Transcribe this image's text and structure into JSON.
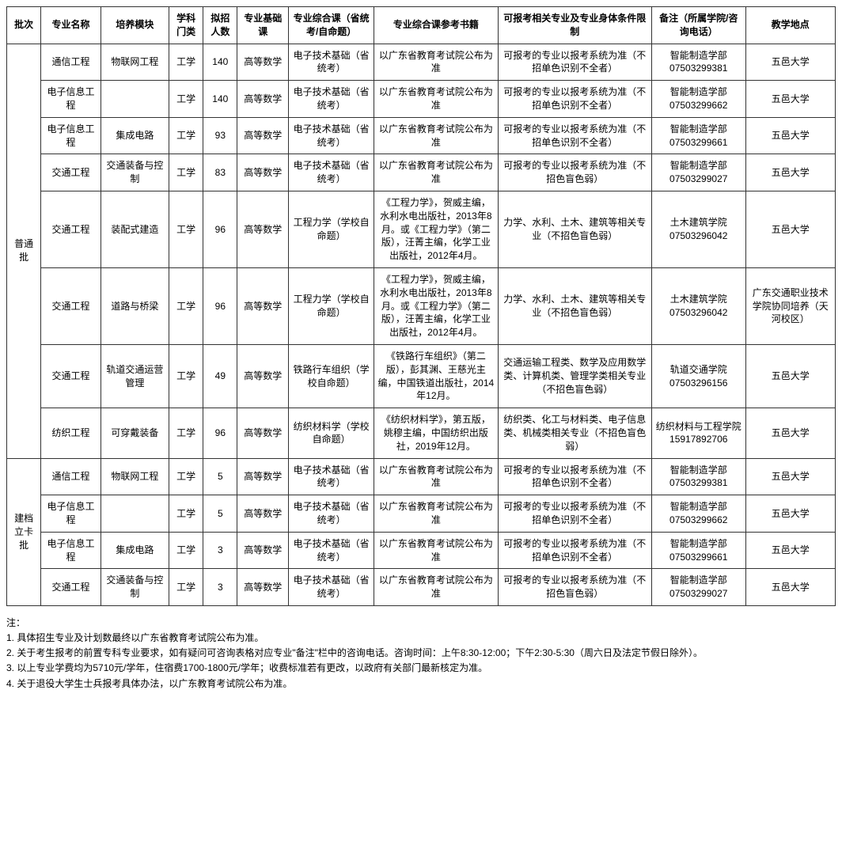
{
  "headers": {
    "batch": "批次",
    "major": "专业名称",
    "module": "培养模块",
    "category": "学科门类",
    "enroll": "拟招人数",
    "basic": "专业基础课",
    "comp": "专业综合课（省统考/自命题）",
    "books": "专业综合课参考书籍",
    "restrict": "可报考相关专业及专业身体条件限制",
    "note": "备注（所属学院/咨询电话）",
    "location": "教学地点"
  },
  "batches": [
    {
      "label": "普通批",
      "rowspan": 8
    },
    {
      "label": "建档立卡批",
      "rowspan": 4
    }
  ],
  "rows": [
    {
      "major": "通信工程",
      "module": "物联网工程",
      "category": "工学",
      "enroll": "140",
      "basic": "高等数学",
      "comp": "电子技术基础（省统考）",
      "books": "以广东省教育考试院公布为准",
      "restrict": "可报考的专业以报考系统为准（不招单色识别不全者）",
      "note": "智能制造学部07503299381",
      "location": "五邑大学"
    },
    {
      "major": "电子信息工程",
      "module": "",
      "category": "工学",
      "enroll": "140",
      "basic": "高等数学",
      "comp": "电子技术基础（省统考）",
      "books": "以广东省教育考试院公布为准",
      "restrict": "可报考的专业以报考系统为准（不招单色识别不全者）",
      "note": "智能制造学部07503299662",
      "location": "五邑大学"
    },
    {
      "major": "电子信息工程",
      "module": "集成电路",
      "category": "工学",
      "enroll": "93",
      "basic": "高等数学",
      "comp": "电子技术基础（省统考）",
      "books": "以广东省教育考试院公布为准",
      "restrict": "可报考的专业以报考系统为准（不招单色识别不全者）",
      "note": "智能制造学部07503299661",
      "location": "五邑大学"
    },
    {
      "major": "交通工程",
      "module": "交通装备与控制",
      "category": "工学",
      "enroll": "83",
      "basic": "高等数学",
      "comp": "电子技术基础（省统考）",
      "books": "以广东省教育考试院公布为准",
      "restrict": "可报考的专业以报考系统为准（不招色盲色弱）",
      "note": "智能制造学部07503299027",
      "location": "五邑大学"
    },
    {
      "major": "交通工程",
      "module": "装配式建造",
      "category": "工学",
      "enroll": "96",
      "basic": "高等数学",
      "comp": "工程力学（学校自命题）",
      "books": "《工程力学》，贺威主编，水利水电出版社，2013年8月。或《工程力学》（第二版），汪菁主编，化学工业出版社，2012年4月。",
      "restrict": "力学、水利、土木、建筑等相关专业（不招色盲色弱）",
      "note": "土木建筑学院07503296042",
      "location": "五邑大学"
    },
    {
      "major": "交通工程",
      "module": "道路与桥梁",
      "category": "工学",
      "enroll": "96",
      "basic": "高等数学",
      "comp": "工程力学（学校自命题）",
      "books": "《工程力学》，贺威主编，水利水电出版社，2013年8月。或《工程力学》（第二版），汪菁主编，化学工业出版社，2012年4月。",
      "restrict": "力学、水利、土木、建筑等相关专业（不招色盲色弱）",
      "note": "土木建筑学院07503296042",
      "location": "广东交通职业技术学院协同培养（天河校区）"
    },
    {
      "major": "交通工程",
      "module": "轨道交通运营管理",
      "category": "工学",
      "enroll": "49",
      "basic": "高等数学",
      "comp": "铁路行车组织（学校自命题）",
      "books": "《铁路行车组织》（第二版），彭其渊、王慈光主编，中国铁道出版社，2014年12月。",
      "restrict": "交通运输工程类、数学及应用数学类、计算机类、管理学类相关专业（不招色盲色弱）",
      "note": "轨道交通学院07503296156",
      "location": "五邑大学"
    },
    {
      "major": "纺织工程",
      "module": "可穿戴装备",
      "category": "工学",
      "enroll": "96",
      "basic": "高等数学",
      "comp": "纺织材料学（学校自命题）",
      "books": "《纺织材料学》，第五版，姚穆主编，中国纺织出版社，2019年12月。",
      "restrict": "纺织类、化工与材料类、电子信息类、机械类相关专业（不招色盲色弱）",
      "note": "纺织材料与工程学院15917892706",
      "location": "五邑大学"
    },
    {
      "major": "通信工程",
      "module": "物联网工程",
      "category": "工学",
      "enroll": "5",
      "basic": "高等数学",
      "comp": "电子技术基础（省统考）",
      "books": "以广东省教育考试院公布为准",
      "restrict": "可报考的专业以报考系统为准（不招单色识别不全者）",
      "note": "智能制造学部07503299381",
      "location": "五邑大学"
    },
    {
      "major": "电子信息工程",
      "module": "",
      "category": "工学",
      "enroll": "5",
      "basic": "高等数学",
      "comp": "电子技术基础（省统考）",
      "books": "以广东省教育考试院公布为准",
      "restrict": "可报考的专业以报考系统为准（不招单色识别不全者）",
      "note": "智能制造学部07503299662",
      "location": "五邑大学"
    },
    {
      "major": "电子信息工程",
      "module": "集成电路",
      "category": "工学",
      "enroll": "3",
      "basic": "高等数学",
      "comp": "电子技术基础（省统考）",
      "books": "以广东省教育考试院公布为准",
      "restrict": "可报考的专业以报考系统为准（不招单色识别不全者）",
      "note": "智能制造学部07503299661",
      "location": "五邑大学"
    },
    {
      "major": "交通工程",
      "module": "交通装备与控制",
      "category": "工学",
      "enroll": "3",
      "basic": "高等数学",
      "comp": "电子技术基础（省统考）",
      "books": "以广东省教育考试院公布为准",
      "restrict": "可报考的专业以报考系统为准（不招色盲色弱）",
      "note": "智能制造学部07503299027",
      "location": "五邑大学"
    }
  ],
  "notes": {
    "title": "注：",
    "lines": [
      "1. 具体招生专业及计划数最终以广东省教育考试院公布为准。",
      "2. 关于考生报考的前置专科专业要求，如有疑问可咨询表格对应专业\"备注\"栏中的咨询电话。咨询时间：上午8:30-12:00；下午2:30-5:30（周六日及法定节假日除外）。",
      "3. 以上专业学费均为5710元/学年，住宿费1700-1800元/学年；收费标准若有更改，以政府有关部门最新核定为准。",
      "4. 关于退役大学生士兵报考具体办法，以广东教育考试院公布为准。"
    ]
  }
}
